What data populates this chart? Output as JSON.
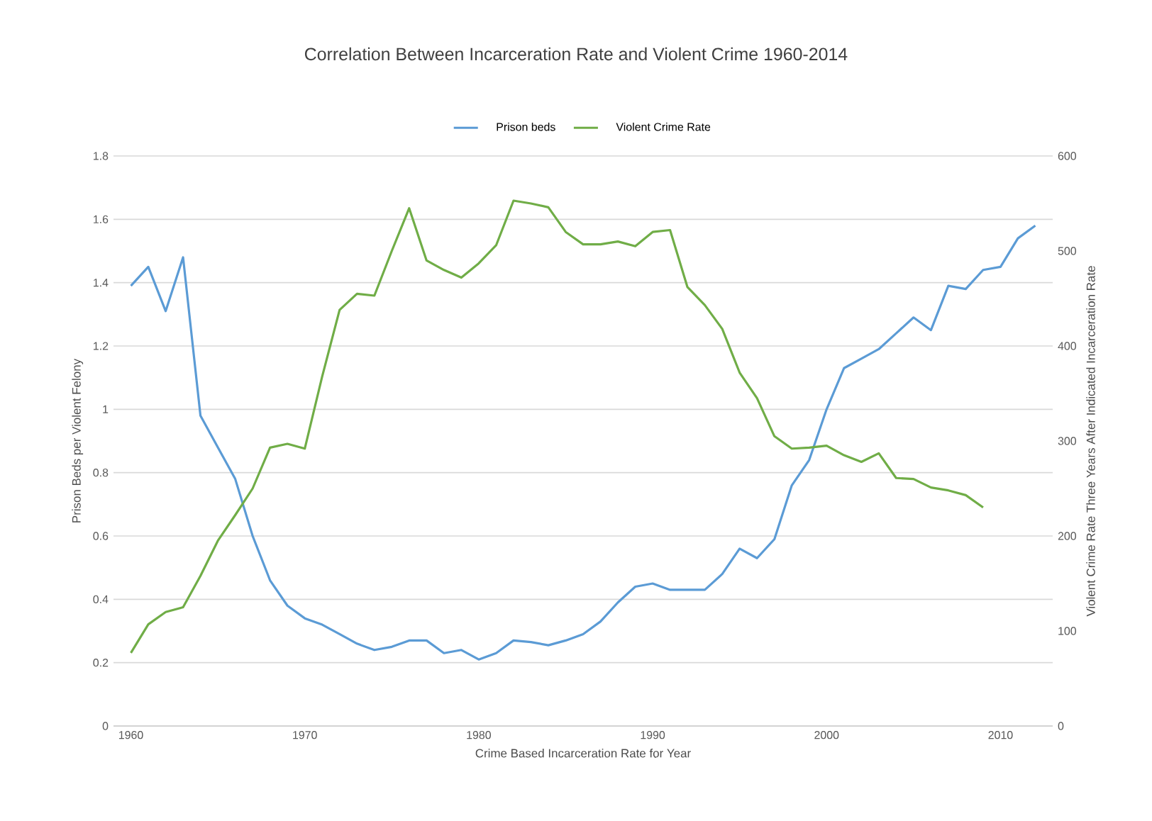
{
  "chart_data": {
    "type": "line",
    "title": "Correlation Between Incarceration Rate and Violent Crime 1960-2014",
    "xlabel": "Crime Based Incarceration Rate for Year",
    "ylabel": "Prison Beds per Violent Felony",
    "y2label": "Violent Crime Rate Three Years After Indicated Incarceration Rate",
    "series": [
      {
        "name": "Prison beds",
        "color": "#5b9bd5",
        "x": [
          1960,
          1961,
          1962,
          1963,
          1964,
          1965,
          1966,
          1967,
          1968,
          1969,
          1970,
          1971,
          1972,
          1973,
          1974,
          1975,
          1976,
          1977,
          1978,
          1979,
          1980,
          1981,
          1982,
          1983,
          1984,
          1985,
          1986,
          1987,
          1988,
          1989,
          1990,
          1991,
          1992,
          1993,
          1994,
          1995,
          1996,
          1997,
          1998,
          1999,
          2000,
          2001,
          2002,
          2003,
          2004,
          2005,
          2006,
          2007,
          2008,
          2009,
          2010,
          2011,
          2012
        ],
        "values": [
          1.39,
          1.45,
          1.31,
          1.48,
          0.98,
          0.88,
          0.78,
          0.6,
          0.46,
          0.38,
          0.34,
          0.32,
          0.29,
          0.26,
          0.24,
          0.25,
          0.27,
          0.27,
          0.23,
          0.24,
          0.21,
          0.23,
          0.27,
          0.265,
          0.255,
          0.27,
          0.29,
          0.33,
          0.39,
          0.44,
          0.45,
          0.43,
          0.43,
          0.43,
          0.48,
          0.56,
          0.53,
          0.59,
          0.76,
          0.84,
          1.0,
          1.13,
          1.16,
          1.19,
          1.24,
          1.29,
          1.25,
          1.39,
          1.38,
          1.44,
          1.45,
          1.54,
          1.58
        ]
      },
      {
        "name": "Violent Crime Rate",
        "color": "#70ad47",
        "axis": "y2",
        "x": [
          1960,
          1961,
          1962,
          1963,
          1964,
          1965,
          1966,
          1967,
          1968,
          1969,
          1970,
          1971,
          1972,
          1973,
          1974,
          1975,
          1976,
          1977,
          1978,
          1979,
          1980,
          1981,
          1982,
          1983,
          1984,
          1985,
          1986,
          1987,
          1988,
          1989,
          1990,
          1991,
          1992,
          1993,
          1994,
          1995,
          1996,
          1997,
          1998,
          1999,
          2000,
          2001,
          2002,
          2003,
          2004,
          2005,
          2006,
          2007,
          2008,
          2009
        ],
        "values": [
          77,
          107,
          120,
          125,
          158,
          195,
          222,
          250,
          293,
          297,
          292,
          368,
          438,
          455,
          453,
          500,
          545,
          490,
          480,
          472,
          487,
          506,
          553,
          550,
          546,
          520,
          507,
          507,
          510,
          505,
          520,
          522,
          462,
          443,
          418,
          372,
          345,
          305,
          292,
          293,
          295,
          285,
          278,
          287,
          261,
          260,
          251,
          248,
          243,
          230
        ]
      }
    ],
    "xlim": [
      1959,
      2013
    ],
    "xticks": [
      1960,
      1970,
      1980,
      1990,
      2000,
      2010
    ],
    "ylim": [
      0,
      1.8
    ],
    "yticks": [
      0,
      0.2,
      0.4,
      0.6,
      0.8,
      1,
      1.2,
      1.4,
      1.6,
      1.8
    ],
    "y2lim": [
      0,
      600
    ],
    "y2ticks": [
      0,
      100,
      200,
      300,
      400,
      500,
      600
    ],
    "grid": "y",
    "legend": "top",
    "marker": "none",
    "line_style": "solid"
  }
}
